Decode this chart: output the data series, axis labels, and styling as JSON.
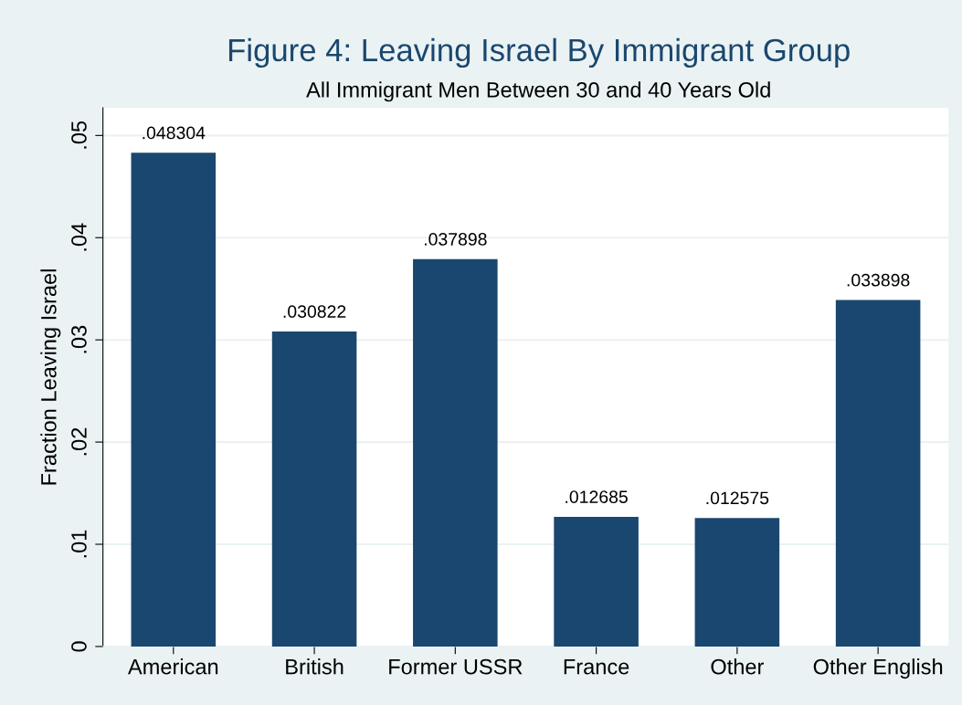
{
  "chart_data": {
    "type": "bar",
    "title": "Figure 4: Leaving Israel By Immigrant Group",
    "subtitle": "All Immigrant Men Between 30 and 40 Years Old",
    "ylabel": "Fraction Leaving Israel",
    "categories": [
      "American",
      "British",
      "Former USSR",
      "France",
      "Other",
      "Other English"
    ],
    "values": [
      0.048304,
      0.030822,
      0.037898,
      0.012685,
      0.012575,
      0.033898
    ],
    "value_labels": [
      ".048304",
      ".030822",
      ".037898",
      ".012685",
      ".012575",
      ".033898"
    ],
    "color": "#1a476f",
    "ylim": [
      0,
      0.0527
    ],
    "yticks": [
      0,
      {
        "value": 0.01,
        "label": ".01"
      },
      {
        "value": 0.02,
        "label": ".02"
      },
      {
        "value": 0.03,
        "label": ".03"
      },
      {
        "value": 0.04,
        "label": ".04"
      },
      {
        "value": 0.05,
        "label": ".05"
      }
    ],
    "grid": "y",
    "legend": false
  }
}
